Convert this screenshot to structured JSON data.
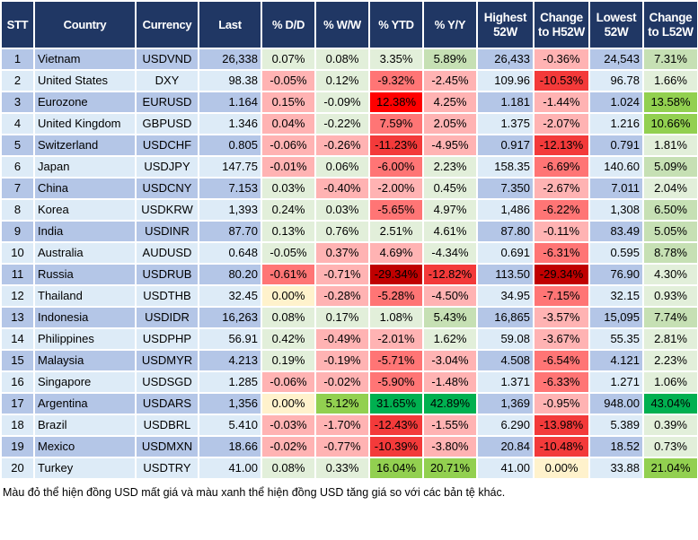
{
  "headers": [
    "STT",
    "Country",
    "Currency",
    "Last",
    "% D/D",
    "% W/W",
    "% YTD",
    "% Y/Y",
    "Highest 52W",
    "Change to H52W",
    "Lowest 52W",
    "Change to L52W"
  ],
  "palette": {
    "g1": "#e2efda",
    "g2": "#c6e0b4",
    "g3": "#92d050",
    "g4": "#00b050",
    "r1": "#ffb3b3",
    "r2": "#ff7575",
    "r3": "#f33a3a",
    "r4": "#ff0000",
    "r5": "#c00000",
    "y": "#fff2cc",
    "header": "#203764",
    "row_dark": "#b4c6e7",
    "row_light": "#ddebf7"
  },
  "rows": [
    {
      "stt": "1",
      "country": "Vietnam",
      "currency": "USDVND",
      "last": "26,338",
      "dd": "0.07%",
      "ww": "0.08%",
      "ytd": "3.35%",
      "yy": "5.89%",
      "high": "26,433",
      "ch": "-0.36%",
      "low": "24,543",
      "cl": "7.31%",
      "colors": [
        "g1",
        "g1",
        "g1",
        "g2",
        "r1",
        "g2"
      ]
    },
    {
      "stt": "2",
      "country": "United States",
      "currency": "DXY",
      "last": "98.38",
      "dd": "-0.05%",
      "ww": "0.12%",
      "ytd": "-9.32%",
      "yy": "-2.45%",
      "high": "109.96",
      "ch": "-10.53%",
      "low": "96.78",
      "cl": "1.66%",
      "colors": [
        "r1",
        "g1",
        "r2",
        "r1",
        "r3",
        "g1"
      ]
    },
    {
      "stt": "3",
      "country": "Eurozone",
      "currency": "EURUSD",
      "last": "1.164",
      "dd": "0.15%",
      "ww": "-0.09%",
      "ytd": "12.38%",
      "yy": "4.25%",
      "high": "1.181",
      "ch": "-1.44%",
      "low": "1.024",
      "cl": "13.58%",
      "colors": [
        "r1",
        "g1",
        "r4",
        "r1",
        "r1",
        "g3"
      ]
    },
    {
      "stt": "4",
      "country": "United Kingdom",
      "currency": "GBPUSD",
      "last": "1.346",
      "dd": "0.04%",
      "ww": "-0.22%",
      "ytd": "7.59%",
      "yy": "2.05%",
      "high": "1.375",
      "ch": "-2.07%",
      "low": "1.216",
      "cl": "10.66%",
      "colors": [
        "r1",
        "g1",
        "r2",
        "r1",
        "r1",
        "g3"
      ]
    },
    {
      "stt": "5",
      "country": "Switzerland",
      "currency": "USDCHF",
      "last": "0.805",
      "dd": "-0.06%",
      "ww": "-0.26%",
      "ytd": "-11.23%",
      "yy": "-4.95%",
      "high": "0.917",
      "ch": "-12.13%",
      "low": "0.791",
      "cl": "1.81%",
      "colors": [
        "r1",
        "r1",
        "r3",
        "r1",
        "r3",
        "g1"
      ]
    },
    {
      "stt": "6",
      "country": "Japan",
      "currency": "USDJPY",
      "last": "147.75",
      "dd": "-0.01%",
      "ww": "0.06%",
      "ytd": "-6.00%",
      "yy": "2.23%",
      "high": "158.35",
      "ch": "-6.69%",
      "low": "140.60",
      "cl": "5.09%",
      "colors": [
        "r1",
        "g1",
        "r2",
        "g1",
        "r2",
        "g2"
      ]
    },
    {
      "stt": "7",
      "country": "China",
      "currency": "USDCNY",
      "last": "7.153",
      "dd": "0.03%",
      "ww": "-0.40%",
      "ytd": "-2.00%",
      "yy": "0.45%",
      "high": "7.350",
      "ch": "-2.67%",
      "low": "7.011",
      "cl": "2.04%",
      "colors": [
        "g1",
        "r1",
        "r1",
        "g1",
        "r1",
        "g1"
      ]
    },
    {
      "stt": "8",
      "country": "Korea",
      "currency": "USDKRW",
      "last": "1,393",
      "dd": "0.24%",
      "ww": "0.03%",
      "ytd": "-5.65%",
      "yy": "4.97%",
      "high": "1,486",
      "ch": "-6.22%",
      "low": "1,308",
      "cl": "6.50%",
      "colors": [
        "g1",
        "g1",
        "r2",
        "g1",
        "r2",
        "g2"
      ]
    },
    {
      "stt": "9",
      "country": "India",
      "currency": "USDINR",
      "last": "87.70",
      "dd": "0.13%",
      "ww": "0.76%",
      "ytd": "2.51%",
      "yy": "4.61%",
      "high": "87.80",
      "ch": "-0.11%",
      "low": "83.49",
      "cl": "5.05%",
      "colors": [
        "g1",
        "g1",
        "g1",
        "g1",
        "r1",
        "g2"
      ]
    },
    {
      "stt": "10",
      "country": "Australia",
      "currency": "AUDUSD",
      "last": "0.648",
      "dd": "-0.05%",
      "ww": "0.37%",
      "ytd": "4.69%",
      "yy": "-4.34%",
      "high": "0.691",
      "ch": "-6.31%",
      "low": "0.595",
      "cl": "8.78%",
      "colors": [
        "g1",
        "r1",
        "r1",
        "g1",
        "r2",
        "g2"
      ]
    },
    {
      "stt": "11",
      "country": "Russia",
      "currency": "USDRUB",
      "last": "80.20",
      "dd": "-0.61%",
      "ww": "-0.71%",
      "ytd": "-29.34%",
      "yy": "-12.82%",
      "high": "113.50",
      "ch": "-29.34%",
      "low": "76.90",
      "cl": "4.30%",
      "colors": [
        "r2",
        "r1",
        "r5",
        "r3",
        "r5",
        "g1"
      ]
    },
    {
      "stt": "12",
      "country": "Thailand",
      "currency": "USDTHB",
      "last": "32.45",
      "dd": "0.00%",
      "ww": "-0.28%",
      "ytd": "-5.28%",
      "yy": "-4.50%",
      "high": "34.95",
      "ch": "-7.15%",
      "low": "32.15",
      "cl": "0.93%",
      "colors": [
        "y",
        "r1",
        "r2",
        "r1",
        "r2",
        "g1"
      ]
    },
    {
      "stt": "13",
      "country": "Indonesia",
      "currency": "USDIDR",
      "last": "16,263",
      "dd": "0.08%",
      "ww": "0.17%",
      "ytd": "1.08%",
      "yy": "5.43%",
      "high": "16,865",
      "ch": "-3.57%",
      "low": "15,095",
      "cl": "7.74%",
      "colors": [
        "g1",
        "g1",
        "g1",
        "g2",
        "r1",
        "g2"
      ]
    },
    {
      "stt": "14",
      "country": "Philippines",
      "currency": "USDPHP",
      "last": "56.91",
      "dd": "0.42%",
      "ww": "-0.49%",
      "ytd": "-2.01%",
      "yy": "1.62%",
      "high": "59.08",
      "ch": "-3.67%",
      "low": "55.35",
      "cl": "2.81%",
      "colors": [
        "g1",
        "r1",
        "r1",
        "g1",
        "r1",
        "g1"
      ]
    },
    {
      "stt": "15",
      "country": "Malaysia",
      "currency": "USDMYR",
      "last": "4.213",
      "dd": "0.19%",
      "ww": "-0.19%",
      "ytd": "-5.71%",
      "yy": "-3.04%",
      "high": "4.508",
      "ch": "-6.54%",
      "low": "4.121",
      "cl": "2.23%",
      "colors": [
        "g1",
        "r1",
        "r2",
        "r1",
        "r2",
        "g1"
      ]
    },
    {
      "stt": "16",
      "country": "Singapore",
      "currency": "USDSGD",
      "last": "1.285",
      "dd": "-0.06%",
      "ww": "-0.02%",
      "ytd": "-5.90%",
      "yy": "-1.48%",
      "high": "1.371",
      "ch": "-6.33%",
      "low": "1.271",
      "cl": "1.06%",
      "colors": [
        "r1",
        "r1",
        "r2",
        "r1",
        "r2",
        "g1"
      ]
    },
    {
      "stt": "17",
      "country": "Argentina",
      "currency": "USDARS",
      "last": "1,356",
      "dd": "0.00%",
      "ww": "5.12%",
      "ytd": "31.65%",
      "yy": "42.89%",
      "high": "1,369",
      "ch": "-0.95%",
      "low": "948.00",
      "cl": "43.04%",
      "colors": [
        "y",
        "g3",
        "g4",
        "g4",
        "r1",
        "g4"
      ]
    },
    {
      "stt": "18",
      "country": "Brazil",
      "currency": "USDBRL",
      "last": "5.410",
      "dd": "-0.03%",
      "ww": "-1.70%",
      "ytd": "-12.43%",
      "yy": "-1.55%",
      "high": "6.290",
      "ch": "-13.98%",
      "low": "5.389",
      "cl": "0.39%",
      "colors": [
        "r1",
        "r1",
        "r3",
        "r1",
        "r3",
        "g1"
      ]
    },
    {
      "stt": "19",
      "country": "Mexico",
      "currency": "USDMXN",
      "last": "18.66",
      "dd": "-0.02%",
      "ww": "-0.77%",
      "ytd": "-10.39%",
      "yy": "-3.80%",
      "high": "20.84",
      "ch": "-10.48%",
      "low": "18.52",
      "cl": "0.73%",
      "colors": [
        "r1",
        "r1",
        "r3",
        "r1",
        "r3",
        "g1"
      ]
    },
    {
      "stt": "20",
      "country": "Turkey",
      "currency": "USDTRY",
      "last": "41.00",
      "dd": "0.08%",
      "ww": "0.33%",
      "ytd": "16.04%",
      "yy": "20.71%",
      "high": "41.00",
      "ch": "0.00%",
      "low": "33.88",
      "cl": "21.04%",
      "colors": [
        "g1",
        "g1",
        "g3",
        "g3",
        "y",
        "g3"
      ]
    }
  ],
  "footer": "Màu đỏ thể hiện đồng USD mất giá và màu xanh thể hiện đồng USD tăng giá so với các bản tệ khác."
}
